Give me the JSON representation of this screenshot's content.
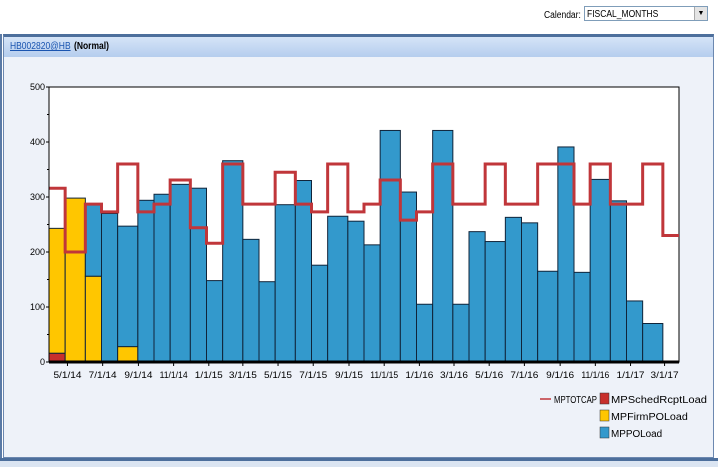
{
  "toolbar": {
    "calendar_label": "Calendar:",
    "calendar_value": "FISCAL_MONTHS"
  },
  "panel": {
    "item_link": "HB002820@HB",
    "status": "(Normal)"
  },
  "chart_data": {
    "type": "bar",
    "stacked": true,
    "x_axis_type": "date",
    "period_starts": [
      "3/30/14",
      "4/27/14",
      "6/1/14",
      "6/29/14",
      "7/27/14",
      "8/31/14",
      "9/28/14",
      "10/26/14",
      "11/30/14",
      "12/28/14",
      "1/25/15",
      "3/1/15",
      "3/29/15",
      "4/26/15",
      "5/31/15",
      "6/28/15",
      "7/26/15",
      "8/30/15",
      "9/27/15",
      "10/25/15",
      "11/29/15",
      "12/27/15",
      "1/24/16",
      "2/28/16",
      "3/27/16",
      "4/24/16",
      "5/29/16",
      "6/26/16",
      "7/24/16",
      "8/28/16",
      "9/25/16",
      "10/23/16",
      "11/27/16",
      "12/25/16",
      "1/22/17",
      "2/26/17"
    ],
    "x_end": "3/26/17",
    "series": [
      {
        "name": "MPSchedRcptLoad",
        "kind": "bar",
        "color": "#c8302c",
        "values": [
          16,
          0,
          0,
          0,
          0,
          0,
          0,
          0,
          0,
          0,
          0,
          0,
          0,
          0,
          0,
          0,
          0,
          0,
          0,
          0,
          0,
          0,
          0,
          0,
          0,
          0,
          0,
          0,
          0,
          0,
          0,
          0,
          0,
          0,
          0,
          0
        ]
      },
      {
        "name": "MPFirmPOLoad",
        "kind": "bar",
        "color": "#ffc600",
        "values": [
          227,
          298,
          156,
          0,
          28,
          0,
          0,
          0,
          0,
          0,
          0,
          0,
          0,
          0,
          0,
          0,
          0,
          0,
          0,
          0,
          0,
          0,
          0,
          0,
          0,
          0,
          0,
          0,
          0,
          0,
          0,
          0,
          0,
          0,
          0,
          0
        ]
      },
      {
        "name": "MPPOLoad",
        "kind": "bar",
        "color": "#3399cc",
        "values": [
          0,
          0,
          131,
          270,
          219,
          294,
          305,
          323,
          316,
          148,
          366,
          223,
          146,
          286,
          330,
          176,
          265,
          256,
          213,
          421,
          309,
          105,
          421,
          105,
          237,
          219,
          263,
          253,
          165,
          391,
          163,
          332,
          293,
          111,
          70,
          0
        ]
      },
      {
        "name": "MPTOTCAP",
        "kind": "step-line",
        "color": "#c0363a",
        "values": [
          316,
          200,
          287,
          273,
          360,
          273,
          287,
          331,
          244,
          216,
          360,
          287,
          287,
          345,
          287,
          273,
          360,
          273,
          287,
          331,
          258,
          273,
          360,
          287,
          287,
          360,
          287,
          287,
          360,
          360,
          287,
          360,
          287,
          287,
          360,
          230
        ]
      }
    ],
    "ylim": [
      0,
      500
    ],
    "yticks": [
      "0",
      "100",
      "200",
      "300",
      "400",
      "500"
    ],
    "xticks": [
      "5/1/14",
      "7/1/14",
      "9/1/14",
      "11/1/14",
      "1/1/15",
      "3/1/15",
      "5/1/15",
      "7/1/15",
      "9/1/15",
      "11/1/15",
      "1/1/16",
      "3/1/16",
      "5/1/16",
      "7/1/16",
      "9/1/16",
      "11/1/16",
      "1/1/17",
      "3/1/17"
    ],
    "legend": [
      "MPTOTCAP",
      "MPSchedRcptLoad",
      "MPFirmPOLoad",
      "MPPOLoad"
    ],
    "legend_position": "bottom-right",
    "grid": false
  }
}
